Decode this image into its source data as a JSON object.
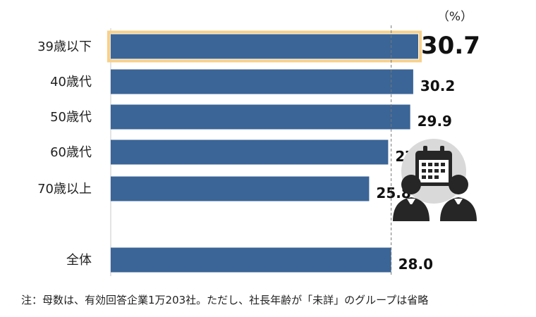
{
  "chart_data": {
    "type": "bar",
    "orientation": "horizontal",
    "unit_label": "（%）",
    "categories": [
      "39歳以下",
      "40歳代",
      "50歳代",
      "60歳代",
      "70歳以上",
      "全体"
    ],
    "values": [
      30.7,
      30.2,
      29.9,
      27.7,
      25.8,
      28.0
    ],
    "value_labels": [
      "30.7",
      "30.2",
      "29.9",
      "27.7",
      "25.8",
      "28.0"
    ],
    "highlighted_category": "39歳以下",
    "reference_line_value": 28.0,
    "xlim": [
      0,
      30.7
    ],
    "colors": {
      "bar": "#3b6597",
      "highlight_border": "#f7d08a",
      "reference_line": "#777777",
      "icon_circle": "#d9d9d9",
      "icon_dark": "#262626"
    }
  },
  "note": "注：母数は、有効回答企業1万203社。ただし、社長年齢が「未詳」のグループは省略",
  "icon": "calendar-with-two-business-people-icon"
}
